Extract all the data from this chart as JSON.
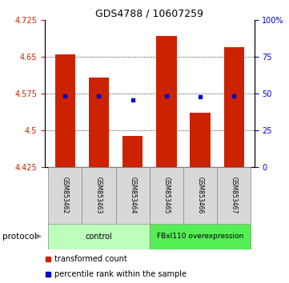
{
  "title": "GDS4788 / 10607259",
  "samples": [
    "GSM853462",
    "GSM853463",
    "GSM853464",
    "GSM853465",
    "GSM853466",
    "GSM853467"
  ],
  "bar_bottom": 4.425,
  "bar_tops": [
    4.655,
    4.608,
    4.488,
    4.692,
    4.535,
    4.67
  ],
  "blue_y": [
    4.57,
    4.57,
    4.562,
    4.57,
    4.568,
    4.57
  ],
  "bar_color": "#cc2200",
  "blue_color": "#0000cc",
  "ylim_left": [
    4.425,
    4.725
  ],
  "ylim_right": [
    0,
    100
  ],
  "yticks_left": [
    4.425,
    4.5,
    4.575,
    4.65,
    4.725
  ],
  "yticks_right": [
    0,
    25,
    50,
    75,
    100
  ],
  "ytick_labels_right": [
    "0",
    "25",
    "50",
    "75",
    "100%"
  ],
  "hlines": [
    4.5,
    4.575,
    4.65
  ],
  "bar_width": 0.6,
  "group_control_color": "#bbffbb",
  "group_over_color": "#55ee55",
  "sample_box_color": "#d8d8d8",
  "legend_red_label": "transformed count",
  "legend_blue_label": "percentile rank within the sample"
}
